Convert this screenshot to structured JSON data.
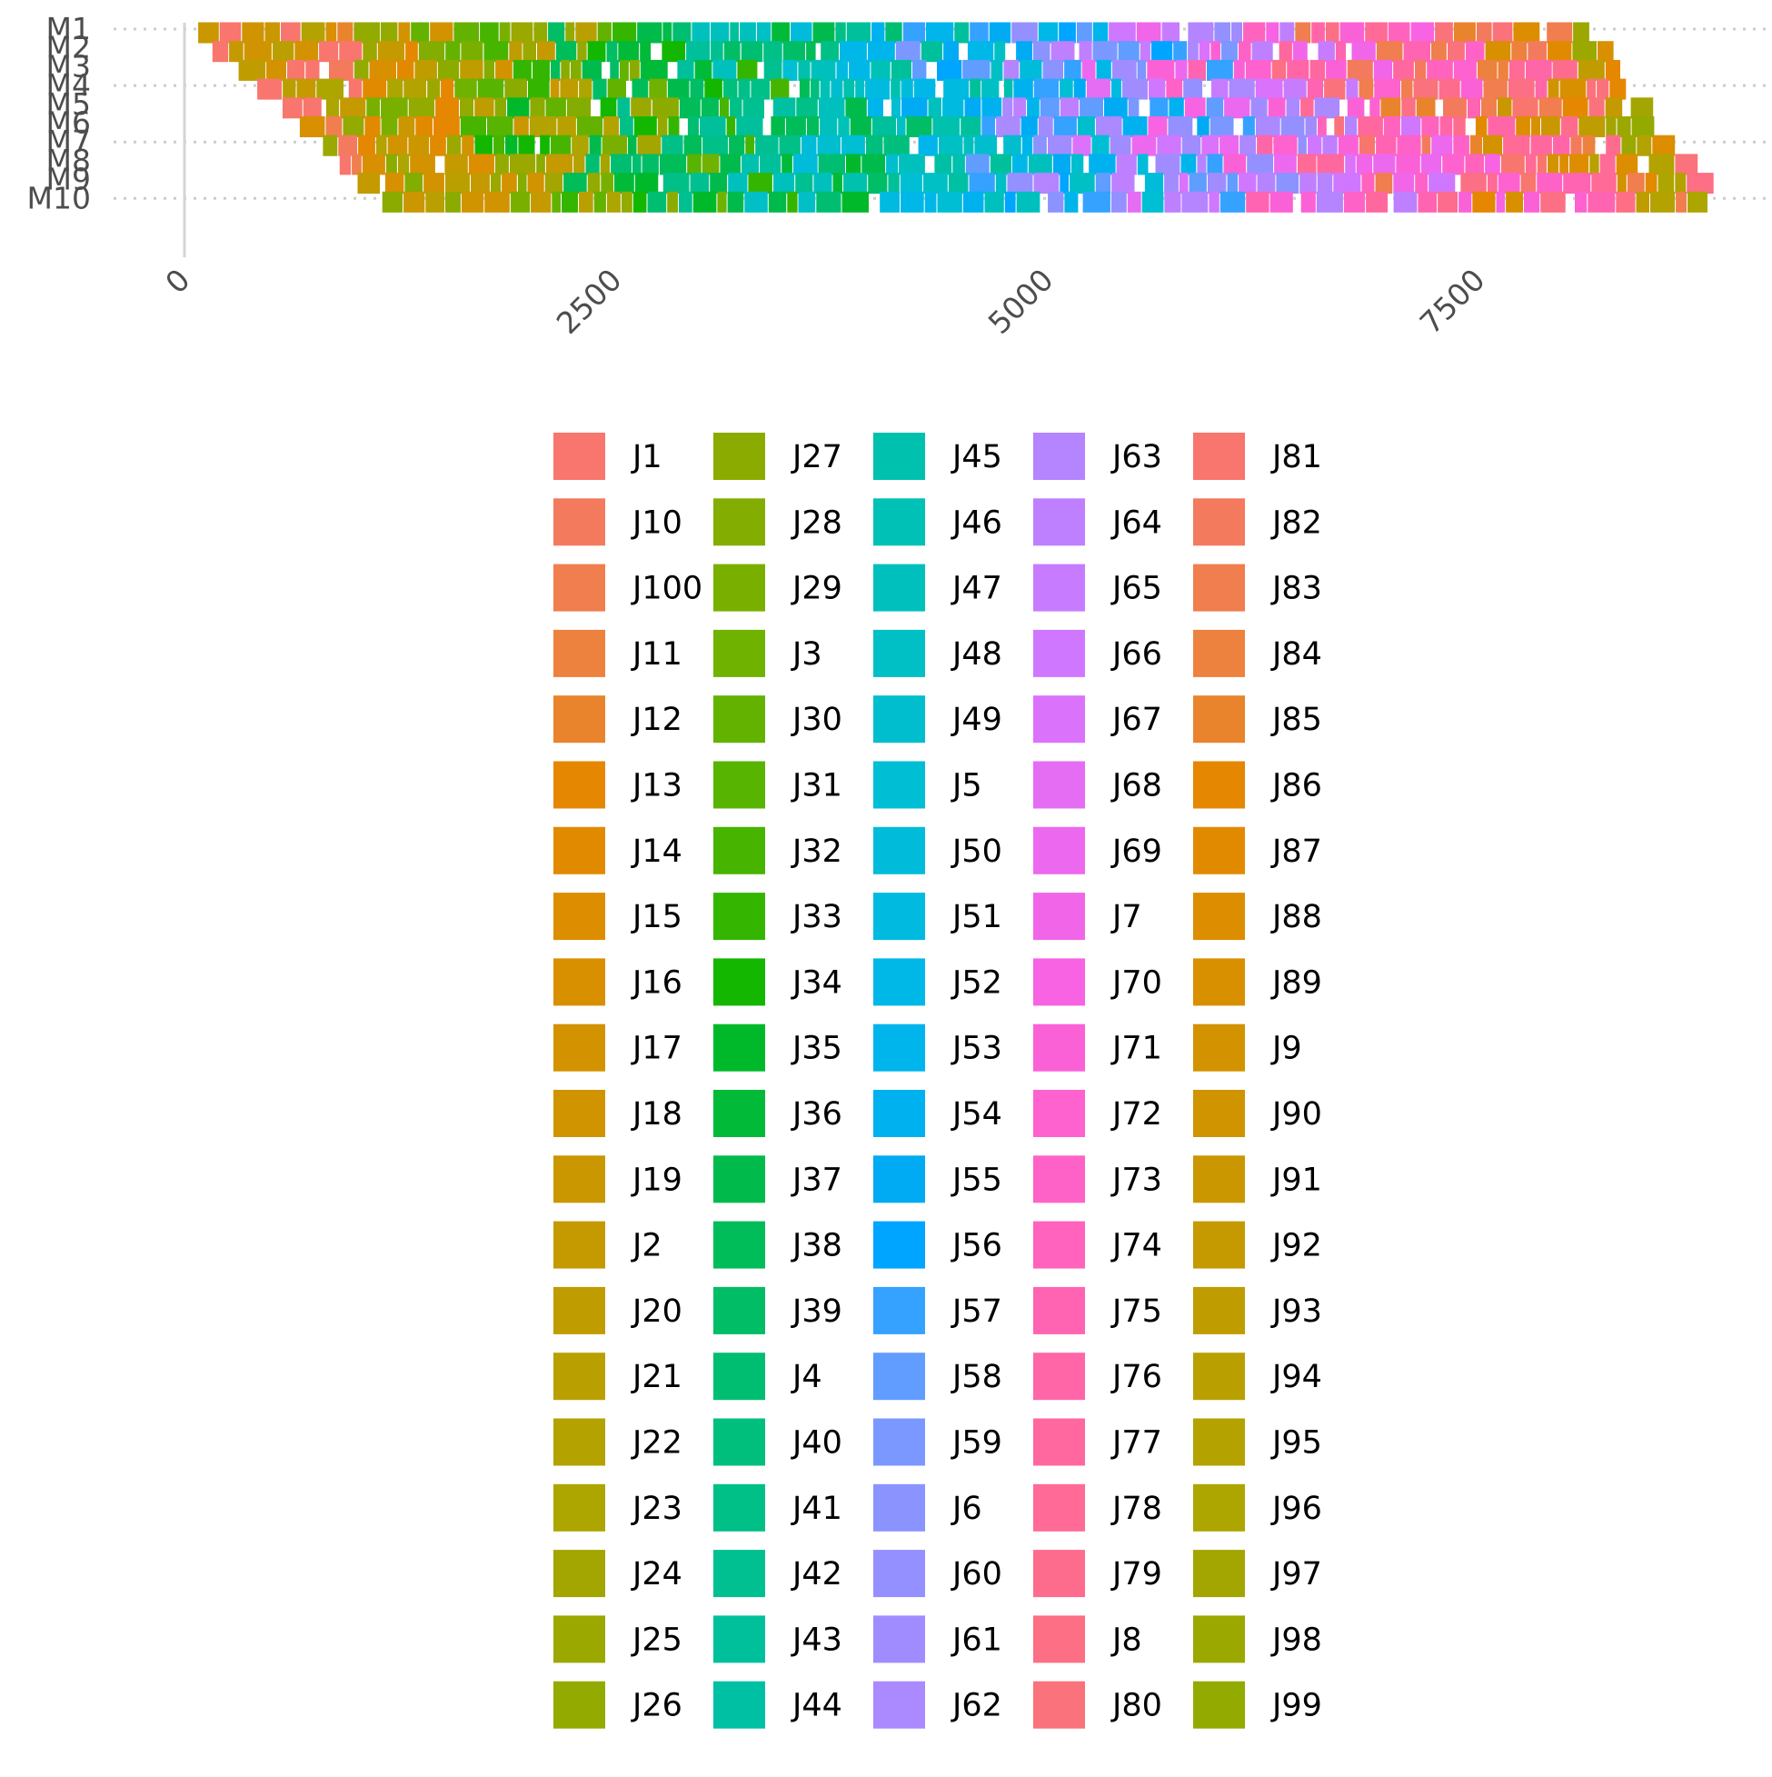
{
  "chart_data": {
    "type": "gantt",
    "title": "",
    "xlabel": "",
    "ylabel": "",
    "machines": [
      "M1",
      "M2",
      "M3",
      "M4",
      "M5",
      "M6",
      "M7",
      "M8",
      "M9",
      "M10"
    ],
    "x_ticks": [
      0,
      2500,
      5000,
      7500
    ],
    "x_tick_labels": [
      "0",
      "2500",
      "5000",
      "7500"
    ],
    "xlim": [
      0,
      8700
    ],
    "grid": "dotted horizontal at every other machine row",
    "legend_position": "bottom",
    "jobs": [
      "J1",
      "J10",
      "J100",
      "J11",
      "J12",
      "J13",
      "J14",
      "J15",
      "J16",
      "J17",
      "J18",
      "J19",
      "J2",
      "J20",
      "J21",
      "J22",
      "J23",
      "J24",
      "J25",
      "J26",
      "J27",
      "J28",
      "J29",
      "J3",
      "J30",
      "J31",
      "J32",
      "J33",
      "J34",
      "J35",
      "J36",
      "J37",
      "J38",
      "J39",
      "J4",
      "J40",
      "J41",
      "J42",
      "J43",
      "J44",
      "J45",
      "J46",
      "J47",
      "J48",
      "J49",
      "J5",
      "J50",
      "J51",
      "J52",
      "J53",
      "J54",
      "J55",
      "J56",
      "J57",
      "J58",
      "J59",
      "J6",
      "J60",
      "J61",
      "J62",
      "J63",
      "J64",
      "J65",
      "J66",
      "J67",
      "J68",
      "J69",
      "J7",
      "J70",
      "J71",
      "J72",
      "J73",
      "J74",
      "J75",
      "J76",
      "J77",
      "J78",
      "J79",
      "J8",
      "J80",
      "J81",
      "J82",
      "J83",
      "J84",
      "J85",
      "J86",
      "J87",
      "J88",
      "J89",
      "J9",
      "J90",
      "J91",
      "J92",
      "J93",
      "J94",
      "J95",
      "J96",
      "J97",
      "J98",
      "J99"
    ],
    "job_colors": [
      "#F8766D",
      "#F47A5E",
      "#F07E4E",
      "#ED813E",
      "#E9842C",
      "#E58700",
      "#E18A00",
      "#DD8D00",
      "#D89000",
      "#D39200",
      "#CF9400",
      "#CA9700",
      "#C49A00",
      "#BF9C00",
      "#B9A000",
      "#B3A200",
      "#ADA500",
      "#A3A500",
      "#9BA800",
      "#93AA00",
      "#8CAB00",
      "#83AD00",
      "#79B000",
      "#6FB200",
      "#64B200",
      "#57B400",
      "#47B500",
      "#34B600",
      "#13B700",
      "#00B92B",
      "#00BA38",
      "#00BB4B",
      "#00BC59",
      "#00BD66",
      "#00BE71",
      "#00BF7D",
      "#00BF87",
      "#00C091",
      "#00C09B",
      "#00C0A4",
      "#00C1AD",
      "#00C1B5",
      "#00C0BE",
      "#00C0C6",
      "#00BECD",
      "#00BED4",
      "#00BCDA",
      "#00BAE0",
      "#00B8E7",
      "#00B5EB",
      "#00B1F0",
      "#00ABF3",
      "#00A5FF",
      "#35A2FF",
      "#619CFF",
      "#7A98FF",
      "#8B93FF",
      "#9590FF",
      "#A18CFF",
      "#AB89FF",
      "#B584FF",
      "#BE80FF",
      "#C77CFF",
      "#D077FF",
      "#DB72FB",
      "#E56DF4",
      "#EC69EF",
      "#F166E8",
      "#F763E2",
      "#FB61D7",
      "#FD62CF",
      "#FF62C7",
      "#FF63BD",
      "#FF64B2",
      "#FF66A8",
      "#FF689F",
      "#FF6A96",
      "#FE6C8D",
      "#FC6F84",
      "#FA727B",
      "#F8766D",
      "#F47A5E",
      "#F07E4E",
      "#ED813E",
      "#E9842C",
      "#E58700",
      "#E18A00",
      "#DD8D00",
      "#D89000",
      "#D39200",
      "#CF9400",
      "#CA9700",
      "#C49A00",
      "#BF9C00",
      "#B9A000",
      "#B3A200",
      "#ADA500",
      "#A3A500",
      "#9BA800",
      "#93AA00"
    ]
  }
}
